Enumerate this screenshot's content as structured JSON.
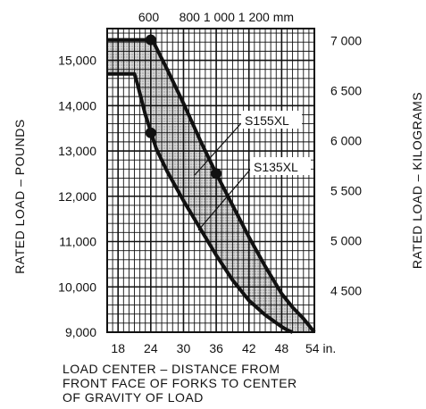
{
  "chart_data": {
    "type": "line",
    "x_unit_bottom": "in.",
    "x_unit_top": "mm",
    "xlim": [
      16,
      54
    ],
    "ylim": [
      9000,
      15700
    ],
    "x_ticks_bottom": [
      18,
      24,
      30,
      36,
      42,
      48,
      54
    ],
    "x_tick_labels_bottom": [
      "18",
      "24",
      "30",
      "36",
      "42",
      "48",
      "54 in."
    ],
    "x_ticks_top_mm": [
      600,
      800,
      1000,
      1200
    ],
    "x_tick_labels_top": [
      "600",
      "800 1 000 1 200 mm"
    ],
    "y_ticks_left": [
      9000,
      10000,
      11000,
      12000,
      13000,
      14000,
      15000
    ],
    "y_tick_labels_left": [
      "9,000",
      "10,000",
      "11,000",
      "12,000",
      "13,000",
      "14,000",
      "15,000"
    ],
    "y_ticks_right_kg": [
      4500,
      5000,
      5500,
      6000,
      6500,
      7000
    ],
    "y_tick_labels_right": [
      "4 500",
      "5 000",
      "5 500",
      "6 000",
      "6 500",
      "7 000"
    ],
    "ylabel_left": "RATED LOAD  –  POUNDS",
    "ylabel_right": "RATED LOAD  –  KILOGRAMS",
    "xlabel": [
      "LOAD CENTER  –  DISTANCE FROM",
      "FRONT FACE OF FORKS TO CENTER",
      "OF GRAVITY OF LOAD"
    ],
    "grid": true,
    "series": [
      {
        "name": "S155XL",
        "x": [
          16,
          24,
          24.5,
          27,
          30,
          33,
          36,
          39,
          42,
          45,
          48,
          50,
          52,
          54
        ],
        "y": [
          15450,
          15450,
          15400,
          14800,
          14050,
          13250,
          12500,
          11800,
          11100,
          10450,
          9850,
          9550,
          9300,
          9000
        ],
        "marker_x": [
          24,
          36
        ],
        "marker_y": [
          15450,
          12500
        ]
      },
      {
        "name": "S135XL",
        "x": [
          16,
          21,
          21.5,
          23,
          25,
          27,
          30,
          33,
          36,
          39,
          42,
          45,
          48,
          49,
          50
        ],
        "y": [
          14700,
          14700,
          14500,
          13800,
          13050,
          12550,
          11900,
          11300,
          10700,
          10150,
          9700,
          9380,
          9120,
          9050,
          9000
        ],
        "marker_x": [
          24
        ],
        "marker_y": [
          13400
        ]
      }
    ]
  }
}
